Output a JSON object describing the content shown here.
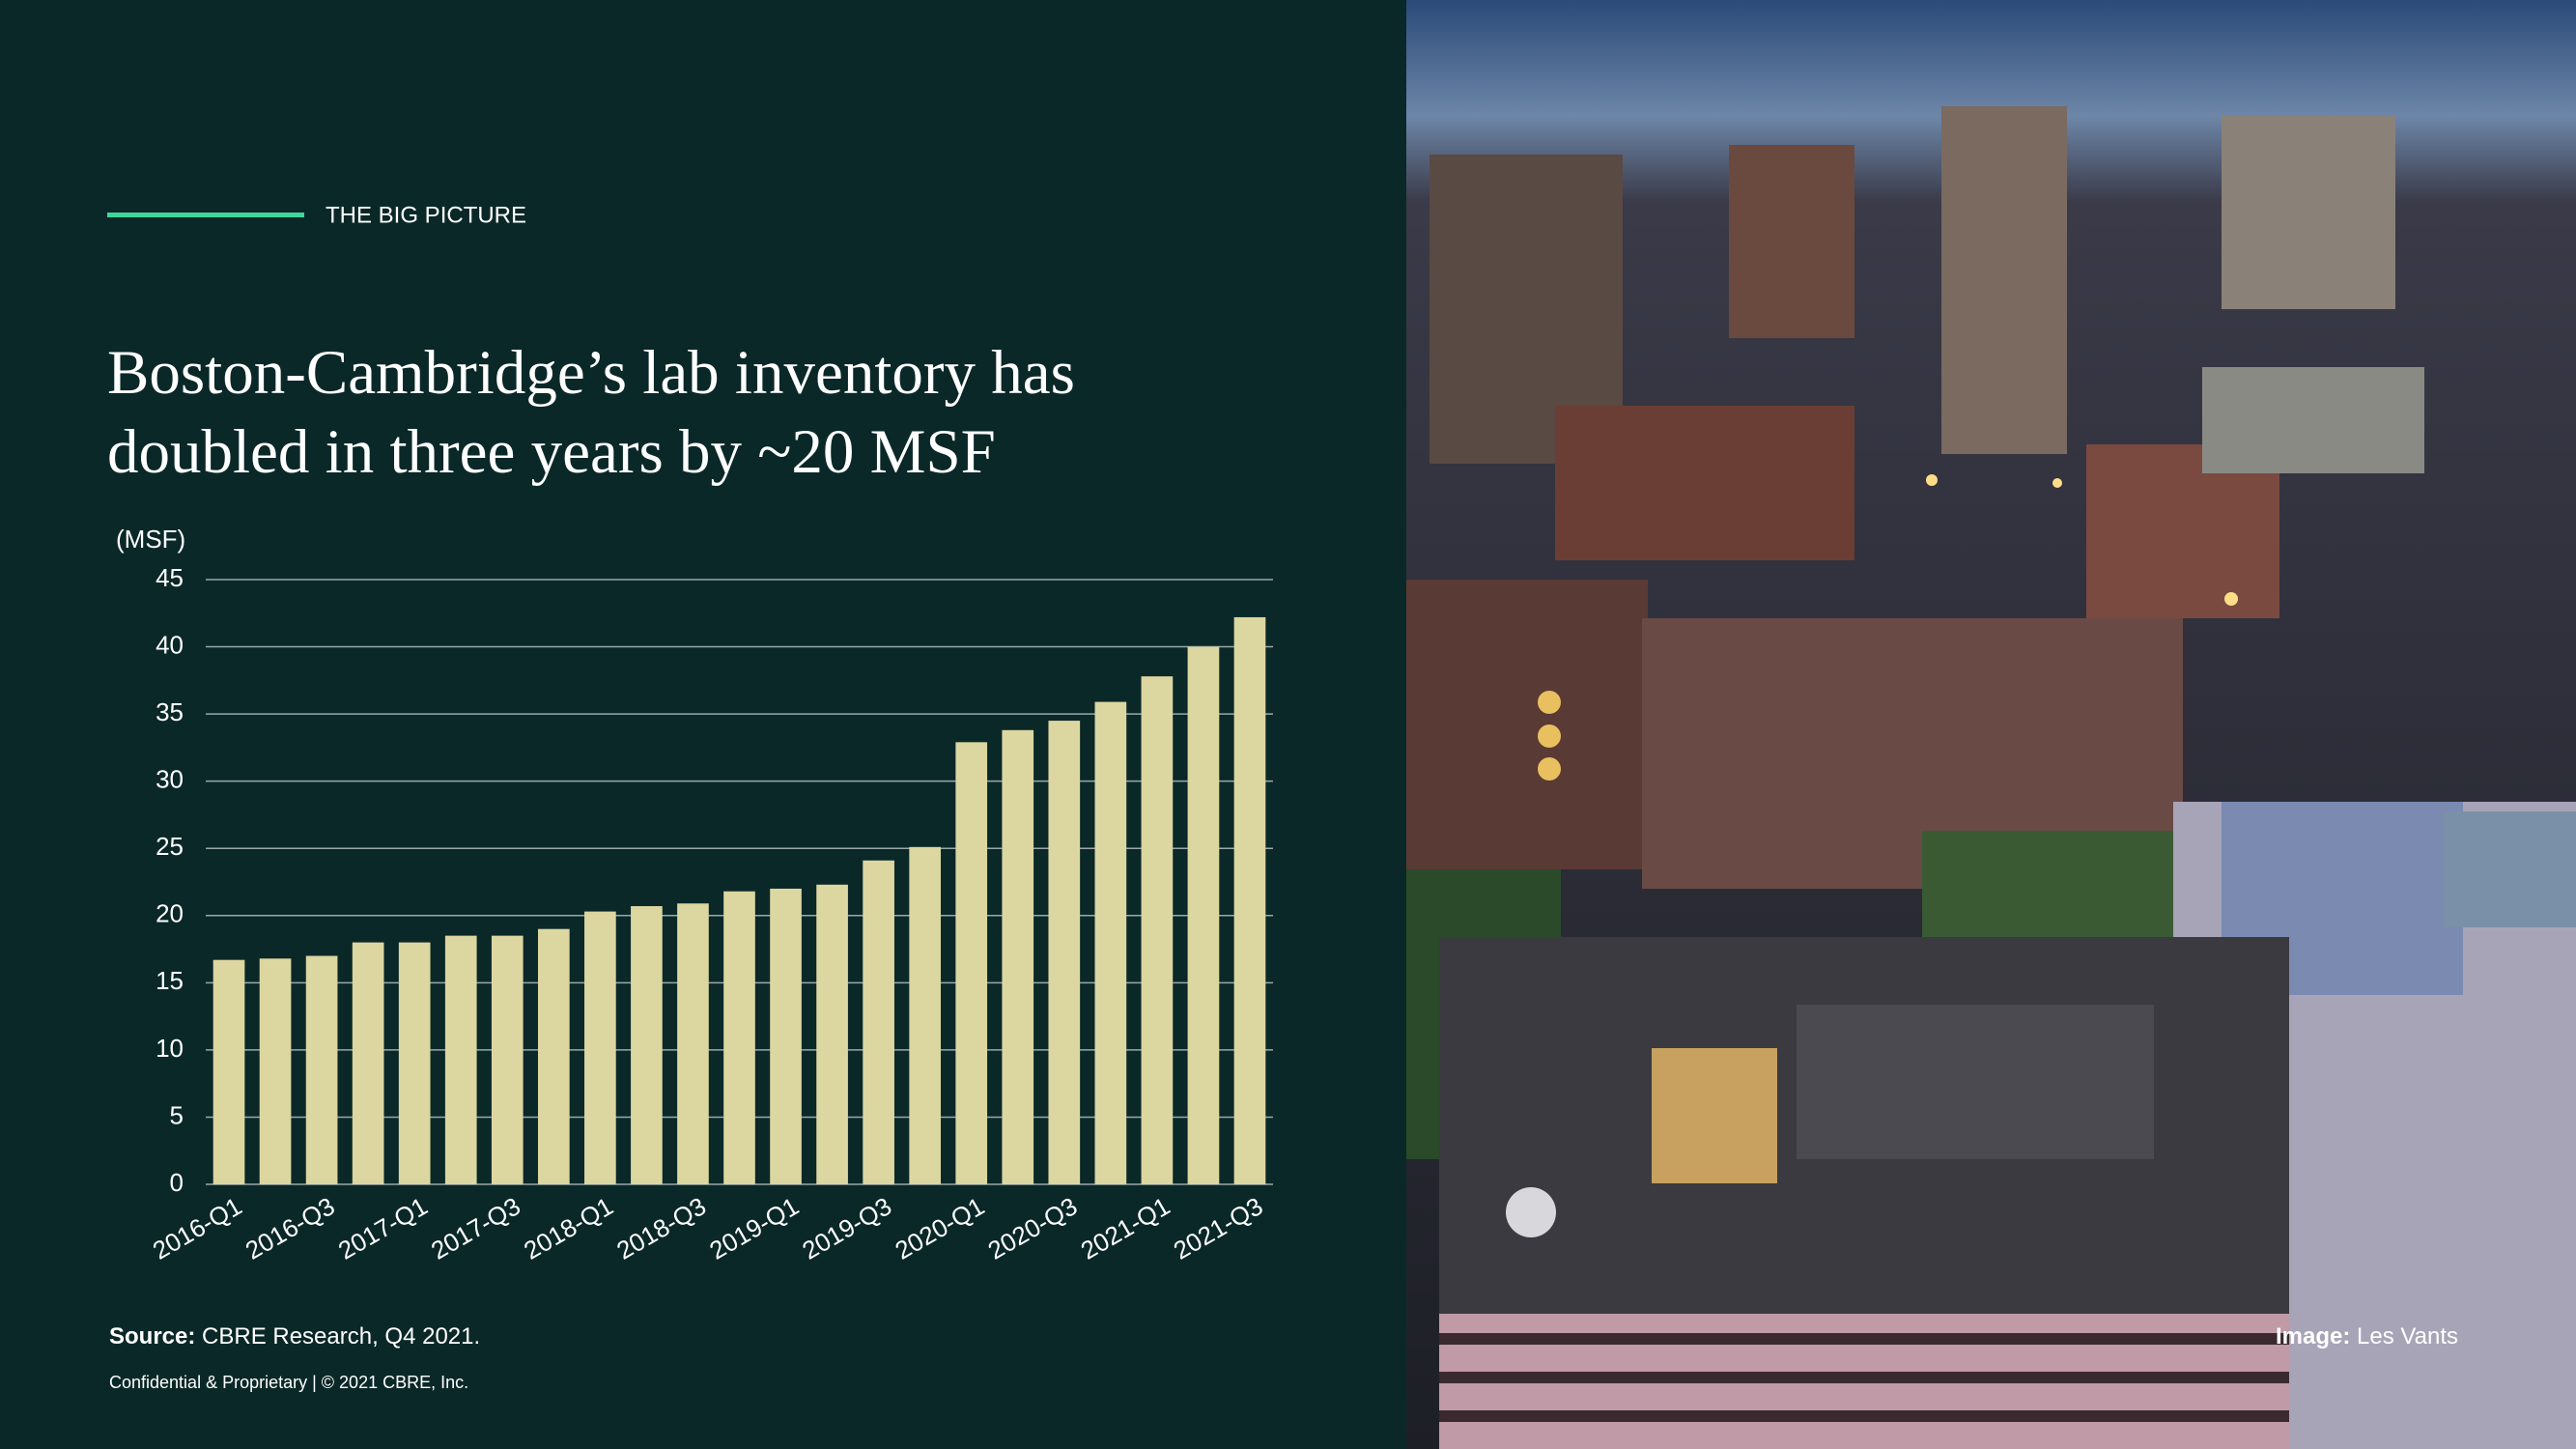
{
  "header": {
    "label": "THE BIG PICTURE"
  },
  "title": {
    "lines": [
      "Boston-Cambridge’s lab inventory has",
      "doubled in three years by ~20 MSF"
    ]
  },
  "chart_data": {
    "type": "bar",
    "y_label": "(MSF)",
    "color": "#dcd6a0",
    "grid": true,
    "categories": [
      "2016-Q1",
      null,
      "2016-Q3",
      null,
      "2017-Q1",
      null,
      "2017-Q3",
      null,
      "2018-Q1",
      null,
      "2018-Q3",
      null,
      "2019-Q1",
      null,
      "2019-Q3",
      null,
      "2020-Q1",
      null,
      "2020-Q3",
      null,
      "2021-Q1",
      null,
      "2021-Q3"
    ],
    "values": [
      16.7,
      16.8,
      17.0,
      18.0,
      18.0,
      18.5,
      18.5,
      19.0,
      20.3,
      20.7,
      20.9,
      21.8,
      22.0,
      22.3,
      24.1,
      25.1,
      32.9,
      33.8,
      34.5,
      35.9,
      37.8,
      40.0,
      42.2
    ],
    "ylim": [
      0,
      45
    ],
    "yticks": [
      0,
      5,
      10,
      15,
      20,
      25,
      30,
      35,
      40,
      45
    ]
  },
  "source": {
    "label": "Source:",
    "text": " CBRE Research, Q4 2021."
  },
  "footer": "Confidential & Proprietary | © 2021 CBRE, Inc.",
  "image_credit": {
    "label": "Image:",
    "text": " Les Vants"
  }
}
